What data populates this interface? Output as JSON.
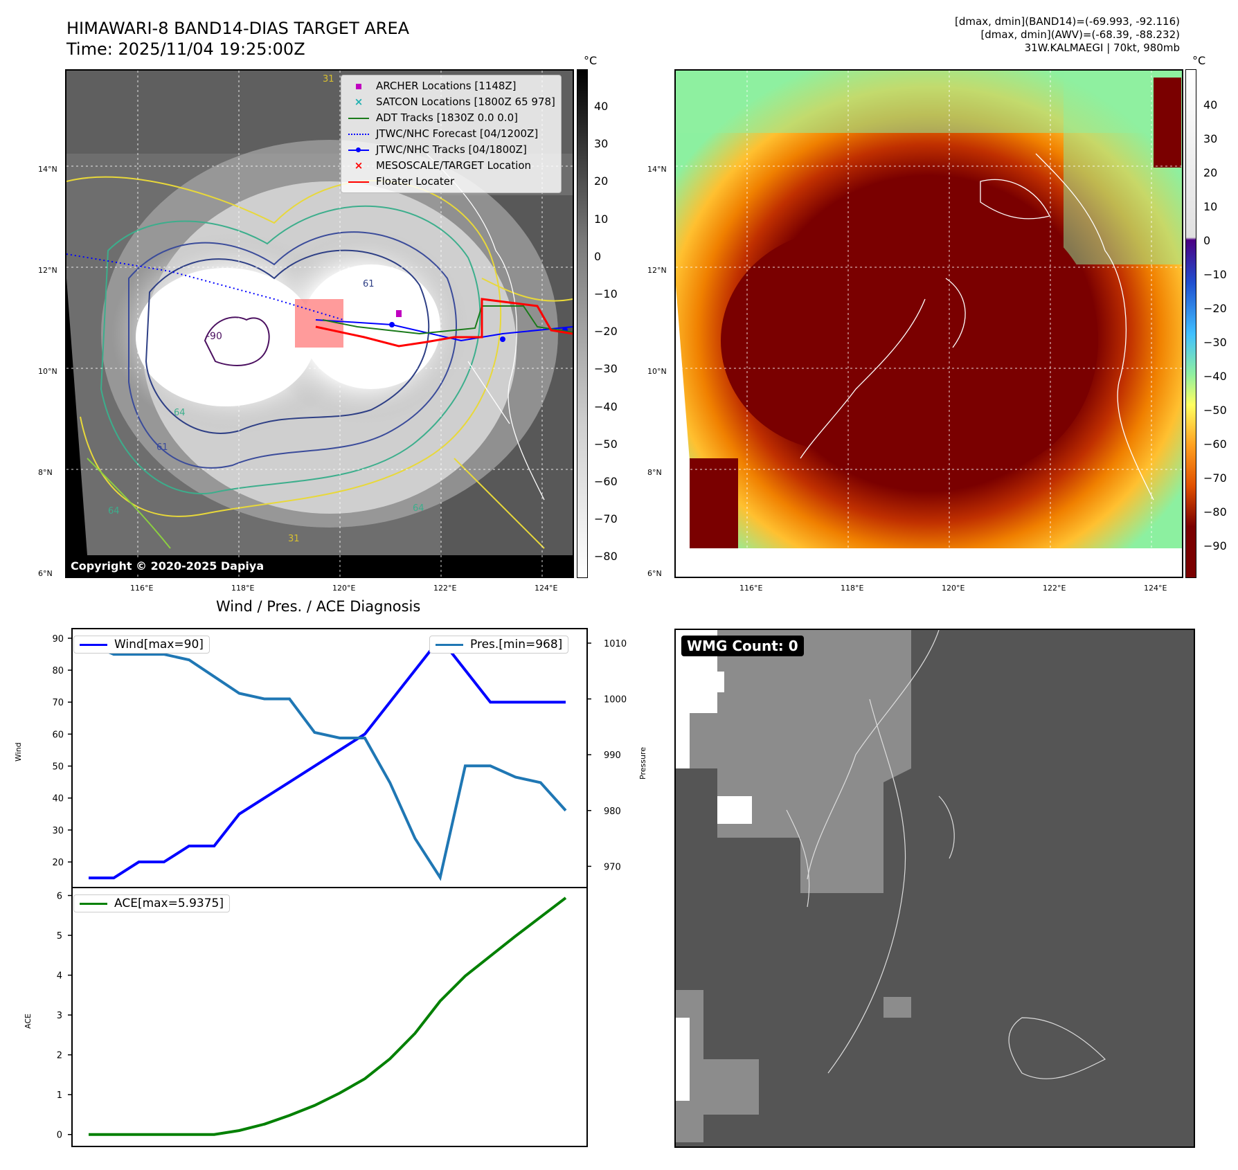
{
  "header": {
    "title_line1": "HIMAWARI-8 BAND14-DIAS TARGET AREA",
    "title_line2": "Time: 2025/11/04 19:25:00Z",
    "info_line1": "[dmax, dmin](BAND14)=(-69.993, -92.116)",
    "info_line2": "[dmax, dmin](AWV)=(-68.39, -88.232)",
    "info_line3": "31W.KALMAEGI | 70kt, 980mb"
  },
  "map_axes": {
    "lat_labels": [
      "14°N",
      "12°N",
      "10°N",
      "8°N",
      "6°N"
    ],
    "lon_labels": [
      "116°E",
      "118°E",
      "120°E",
      "122°E",
      "124°E"
    ]
  },
  "colorbar_left": {
    "unit": "°C",
    "ticks": [
      "40",
      "30",
      "20",
      "10",
      "0",
      "−10",
      "−20",
      "−30",
      "−40",
      "−50",
      "−60",
      "−70",
      "−80"
    ]
  },
  "colorbar_right": {
    "unit": "°C",
    "ticks": [
      "40",
      "30",
      "20",
      "10",
      "0",
      "−10",
      "−20",
      "−30",
      "−40",
      "−50",
      "−60",
      "−70",
      "−80",
      "−90"
    ]
  },
  "map_legend": {
    "items": [
      {
        "label": "ARCHER Locations [1148Z]",
        "color": "#c000c0",
        "symbol": "square"
      },
      {
        "label": "SATCON Locations [1800Z 65 978]",
        "color": "#20b0b0",
        "symbol": "x"
      },
      {
        "label": "ADT Tracks [1830Z 0.0 0.0]",
        "color": "#1a7a1a",
        "symbol": "line"
      },
      {
        "label": "JTWC/NHC Forecast [04/1200Z]",
        "color": "#0000ff",
        "symbol": "dotted"
      },
      {
        "label": "JTWC/NHC Tracks [04/1800Z]",
        "color": "#0000ff",
        "symbol": "line-dot"
      },
      {
        "label": "MESOSCALE/TARGET Location",
        "color": "#ff0000",
        "symbol": "cross"
      },
      {
        "label": "Floater Locater",
        "color": "#ff0000",
        "symbol": "line"
      }
    ]
  },
  "map_contour_labels": [
    "-90",
    "61",
    "64",
    "64",
    "31",
    "31",
    "61",
    "64"
  ],
  "copyright": "Copyright © 2020-2025 Dapiya",
  "wmg": {
    "label": "WMG Count: 0"
  },
  "chart_data": [
    {
      "type": "line",
      "title": "Wind / Pres. / ACE Diagnosis",
      "x": [
        0,
        1,
        2,
        3,
        4,
        5,
        6,
        7,
        8,
        9,
        10,
        11,
        12,
        13,
        14,
        15,
        16,
        17,
        18,
        19
      ],
      "series": [
        {
          "name": "Wind[max=90]",
          "axis": "left",
          "color": "#0000ff",
          "values": [
            15,
            15,
            20,
            20,
            25,
            25,
            35,
            40,
            45,
            50,
            55,
            60,
            70,
            80,
            90,
            80,
            70,
            70,
            70,
            70
          ]
        },
        {
          "name": "Pres.[min=968]",
          "axis": "right",
          "color": "#1f77b4",
          "values": [
            1010,
            1008,
            1008,
            1008,
            1007,
            1004,
            1001,
            1000,
            1000,
            994,
            993,
            993,
            985,
            975,
            968,
            988,
            988,
            986,
            985,
            980
          ]
        }
      ],
      "ylabel": "Wind",
      "ylim": [
        12,
        93
      ],
      "yticks": [
        20,
        30,
        40,
        50,
        60,
        70,
        80,
        90
      ],
      "y2label": "Pressure",
      "y2lim": [
        966.2,
        1012.6
      ],
      "y2ticks": [
        970,
        980,
        990,
        1000,
        1010
      ]
    },
    {
      "type": "line",
      "x": [
        0,
        1,
        2,
        3,
        4,
        5,
        6,
        7,
        8,
        9,
        10,
        11,
        12,
        13,
        14,
        15,
        16,
        17,
        18,
        19
      ],
      "series": [
        {
          "name": "ACE[max=5.9375]",
          "color": "#008000",
          "values": [
            0,
            0,
            0,
            0,
            0,
            0,
            0.1,
            0.26,
            0.48,
            0.73,
            1.04,
            1.4,
            1.9,
            2.54,
            3.35,
            3.98,
            4.48,
            4.98,
            5.46,
            5.94
          ]
        }
      ],
      "ylabel": "ACE",
      "ylim": [
        -0.3,
        6.2
      ],
      "yticks": [
        0,
        1,
        2,
        3,
        4,
        5,
        6
      ]
    }
  ]
}
